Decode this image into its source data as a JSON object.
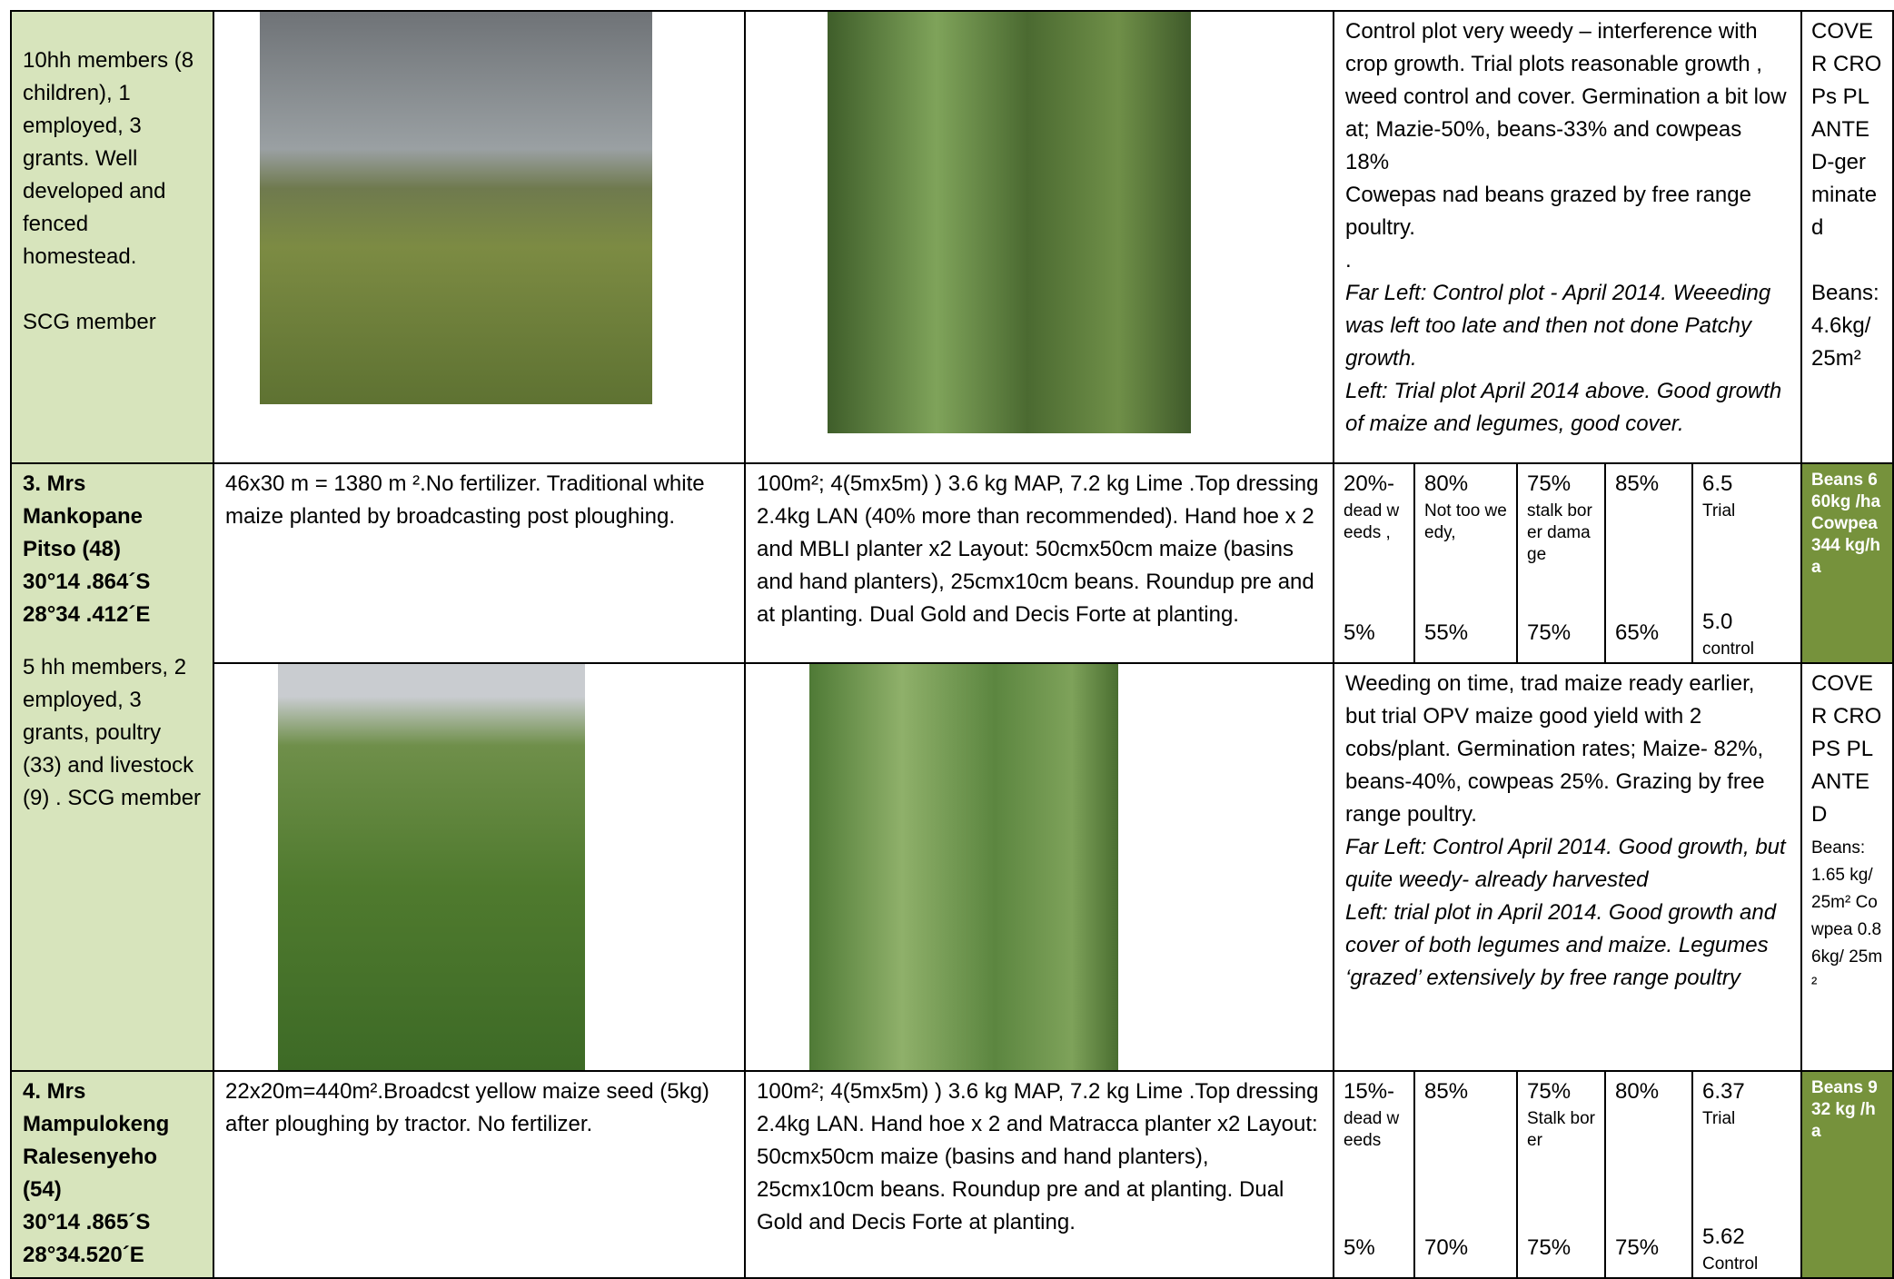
{
  "row_a": {
    "profile": "10hh members (8 children), 1 employed, 3 grants. Well developed and fenced homestead.",
    "membership": "SCG member",
    "comments": [
      "Control plot very weedy – interference with crop growth. Trial plots reasonable growth , weed control and cover. Germination a bit low at; Mazie-50%, beans-33% and cowpeas 18%",
      "Cowepas nad beans grazed by free range poultry.",
      ".",
      "Far Left: Control plot - April 2014. Weeeding was left too late and then not done  Patchy growth.",
      "Left: Trial plot April 2014 above. Good growth of maize and legumes, good cover."
    ],
    "cover_crops": "COVER CROPs PLANTED-germinated",
    "cover_crops_yield": "Beans: 4.6kg/ 25m²"
  },
  "row_b": {
    "farmer": "3. Mrs Mankopane Pitso (48)",
    "latitude": "30°14 .864´S",
    "longitude": "28°34 .412´E",
    "profile": "5  hh members, 2 employed, 3 grants, poultry (33) and livestock (9) . SCG member",
    "control_plot": "46x30 m = 1380 m ².No fertilizer.  Traditional white maize planted by broadcasting post ploughing.",
    "trial_plot": " 100m²; 4(5mx5m) )  3.6 kg MAP, 7.2 kg Lime .Top dressing 2.4kg LAN (40% more than recommended). Hand hoe x 2 and MBLI planter x2 Layout: 50cmx50cm maize (basins and hand planters), 25cmx10cm beans. Roundup pre and at planting. Dual Gold and Decis Forte at planting.",
    "scores": [
      {
        "trial": "20%-",
        "trial_note": "dead weeds ,",
        "control": "5%"
      },
      {
        "trial": "80%",
        "trial_note": "Not too weedy,",
        "control": "55%"
      },
      {
        "trial": "75%",
        "trial_note": "stalk borer damage",
        "control": "75%"
      },
      {
        "trial": "85%",
        "control": "65%"
      },
      {
        "trial": "6.5",
        "trial_note": "Trial",
        "control": "5.0",
        "control_note": "control"
      }
    ],
    "yield": "Beans 660kg /ha Cowpea 344 kg/ha",
    "comments": [
      "Weeding on time, trad maize ready earlier, but trial OPV maize good yield with 2 cobs/plant. Germination rates; Maize- 82%, beans-40%, cowpeas 25%. Grazing by free range poultry.",
      "Far Left: Control April 2014. Good growth, but quite weedy- already harvested",
      "Left: trial plot in April 2014.  Good growth and cover of both legumes and maize. Legumes ‘grazed’ extensively by free range poultry"
    ],
    "cover_crops": "COVER CROPS PLANTED",
    "cover_crops_yield": "Beans: 1.65 kg/ 25m² Cowpea 0.86kg/ 25m²"
  },
  "row_c": {
    "farmer": "4. Mrs Mampulokeng Ralesenyeho (54)",
    "latitude": "30°14 .865´S",
    "longitude": "28°34.520´E",
    "control_plot": "22x20m=440m².Broadcst yellow maize seed (5kg) after ploughing by tractor. No fertilizer.",
    "trial_plot": "100m²; 4(5mx5m) )  3.6 kg MAP, 7.2 kg Lime .Top dressing 2.4kg LAN. Hand hoe x 2 and Matracca planter x2 Layout: 50cmx50cm maize (basins and hand planters), 25cmx10cm beans. Roundup pre and at planting. Dual Gold and Decis Forte at planting.",
    "scores": [
      {
        "trial": "15%-",
        "trial_note": "dead weeds",
        "control": "5%"
      },
      {
        "trial": "85%",
        "control": "70%"
      },
      {
        "trial": "75%",
        "trial_note": "Stalk borer",
        "control": "75%"
      },
      {
        "trial": "80%",
        "control": "75%"
      },
      {
        "trial": "6.37",
        "trial_note": "Trial",
        "control": "5.62",
        "control_note": "Control"
      }
    ],
    "yield": "Beans 932 kg /ha"
  }
}
